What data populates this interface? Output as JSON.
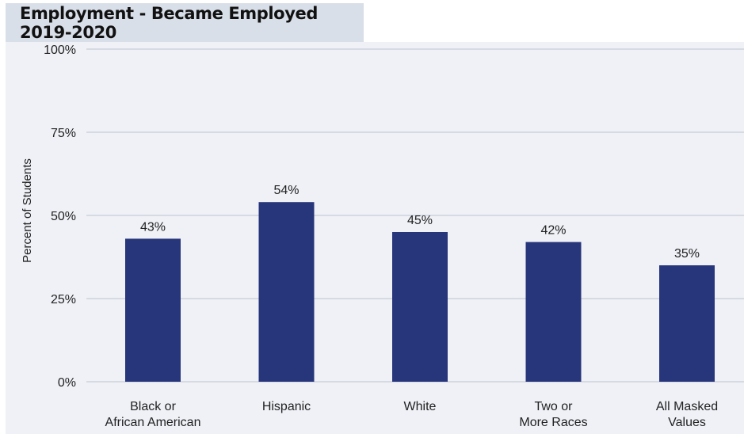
{
  "chart_data": {
    "type": "bar",
    "title": "Employment - Became Employed 2019-2020",
    "ylabel": "Percent of Students",
    "xlabel": "",
    "categories": [
      [
        "Black or",
        "African American"
      ],
      [
        "Hispanic"
      ],
      [
        "White"
      ],
      [
        "Two or",
        "More Races"
      ],
      [
        "All Masked",
        "Values"
      ]
    ],
    "values": [
      43,
      54,
      45,
      42,
      35
    ],
    "data_labels": [
      "43%",
      "54%",
      "45%",
      "42%",
      "35%"
    ],
    "ylim": [
      0,
      100
    ],
    "yticks": [
      0,
      25,
      50,
      75,
      100
    ],
    "ytick_labels": [
      "0%",
      "25%",
      "50%",
      "75%",
      "100%"
    ],
    "grid": true,
    "colors": {
      "bar": "#27357a",
      "grid": "#c6ccd6",
      "panel": "#eff1f6",
      "title_bg": "#d9dfe8"
    }
  }
}
